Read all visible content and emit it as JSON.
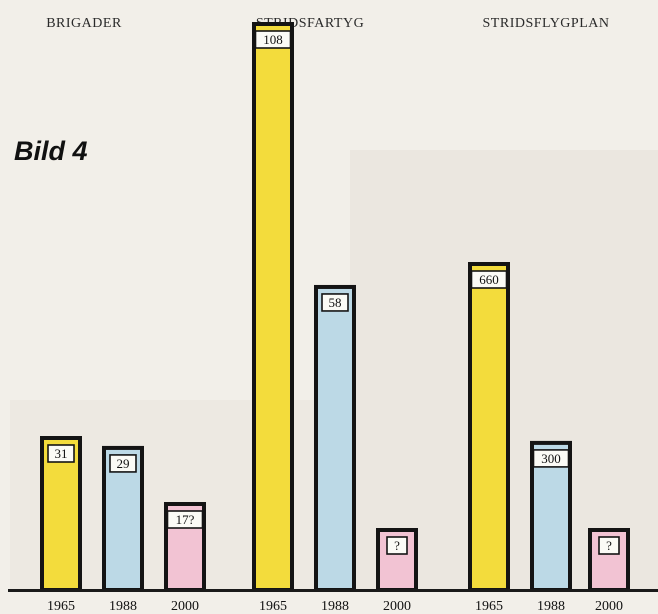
{
  "figure_label": "Bild 4",
  "chart_data": [
    {
      "type": "bar",
      "title": "BRIGADER",
      "categories": [
        "1965",
        "1988",
        "2000"
      ],
      "values": [
        31,
        29,
        17
      ],
      "value_labels": [
        "31",
        "29",
        "17?"
      ],
      "colors": [
        "#f3dc3c",
        "#bcd9e6",
        "#f2c3d3"
      ],
      "ylim": [
        0,
        40
      ]
    },
    {
      "type": "bar",
      "title": "STRIDSFARTYG",
      "categories": [
        "1965",
        "1988",
        "2000"
      ],
      "values": [
        108,
        58,
        null
      ],
      "value_labels": [
        "108",
        "58",
        "?"
      ],
      "colors": [
        "#f3dc3c",
        "#bcd9e6",
        "#f2c3d3"
      ],
      "ylim": [
        0,
        115
      ]
    },
    {
      "type": "bar",
      "title": "STRIDSFLYGPLAN",
      "categories": [
        "1965",
        "1988",
        "2000"
      ],
      "values": [
        660,
        300,
        null
      ],
      "value_labels": [
        "660",
        "300",
        "?"
      ],
      "colors": [
        "#f3dc3c",
        "#bcd9e6",
        "#f2c3d3"
      ],
      "ylim": [
        0,
        900
      ]
    }
  ]
}
